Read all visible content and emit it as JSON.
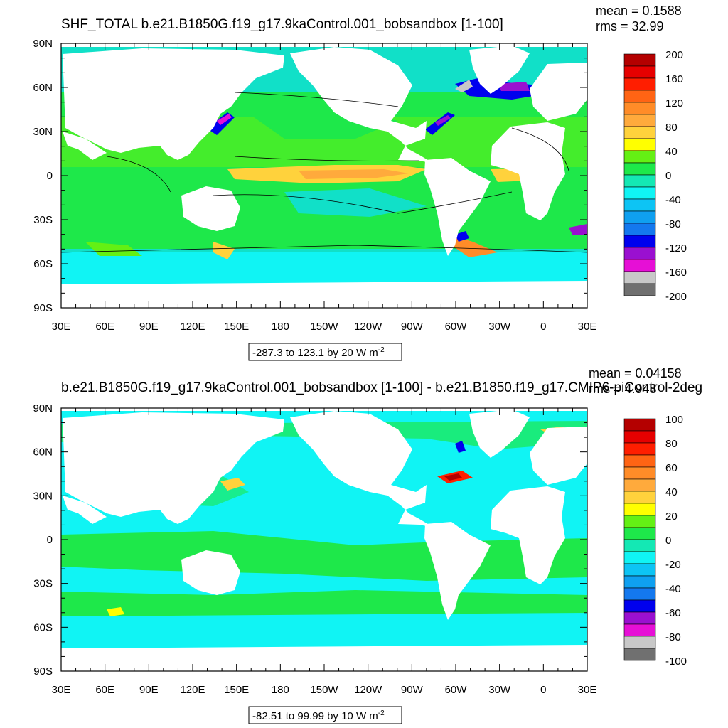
{
  "colors": {
    "land": "#ffffff",
    "ocean_base": "#11e0c8",
    "palette": [
      "#707070",
      "#c8c8c8",
      "#e60fd6",
      "#9a10d0",
      "#0000ee",
      "#1478ee",
      "#0fa0f0",
      "#0dc4f4",
      "#10f4f4",
      "#14e8b4",
      "#1ee84a",
      "#64f014",
      "#ffff00",
      "#ffd23c",
      "#ffaa3c",
      "#ff8c28",
      "#ff6414",
      "#ff1e00",
      "#e60000",
      "#b40000"
    ]
  },
  "chart_data": [
    {
      "type": "heatmap",
      "title": "SHF_TOTAL b.e21.B1850G.f19_g17.9kaControl.001_bobsandbox [1-100]",
      "stats": {
        "mean": "mean = 0.1588",
        "rms": "rms = 32.99"
      },
      "range_label": "-287.3 to 123.1 by 20  W m",
      "units_sup": "-2",
      "xlim": [
        30,
        390
      ],
      "ylim": [
        -90,
        90
      ],
      "x_ticks": [
        "30E",
        "60E",
        "90E",
        "120E",
        "150E",
        "180",
        "150W",
        "120W",
        "90W",
        "60W",
        "30W",
        "0",
        "30E"
      ],
      "y_ticks": [
        "90N",
        "60N",
        "30N",
        "0",
        "30S",
        "60S",
        "90S"
      ],
      "colorbar_labels": [
        "200",
        "160",
        "120",
        "80",
        "40",
        "0",
        "-40",
        "-80",
        "-120",
        "-160",
        "-200"
      ]
    },
    {
      "type": "heatmap",
      "title": "b.e21.B1850G.f19_g17.9kaControl.001_bobsandbox [1-100] - b.e21.B1850.f19_g17.CMIP6-piControl-2deg",
      "stats": {
        "mean": "mean = 0.04158",
        "rms": "rms = 4.948"
      },
      "range_label": "-82.51 to 99.99 by 10  W m",
      "units_sup": "-2",
      "xlim": [
        30,
        390
      ],
      "ylim": [
        -90,
        90
      ],
      "x_ticks": [
        "30E",
        "60E",
        "90E",
        "120E",
        "150E",
        "180",
        "150W",
        "120W",
        "90W",
        "60W",
        "30W",
        "0",
        "30E"
      ],
      "y_ticks": [
        "90N",
        "60N",
        "30N",
        "0",
        "30S",
        "60S",
        "90S"
      ],
      "colorbar_labels": [
        "100",
        "80",
        "60",
        "40",
        "20",
        "0",
        "-20",
        "-40",
        "-60",
        "-80",
        "-100"
      ]
    }
  ]
}
